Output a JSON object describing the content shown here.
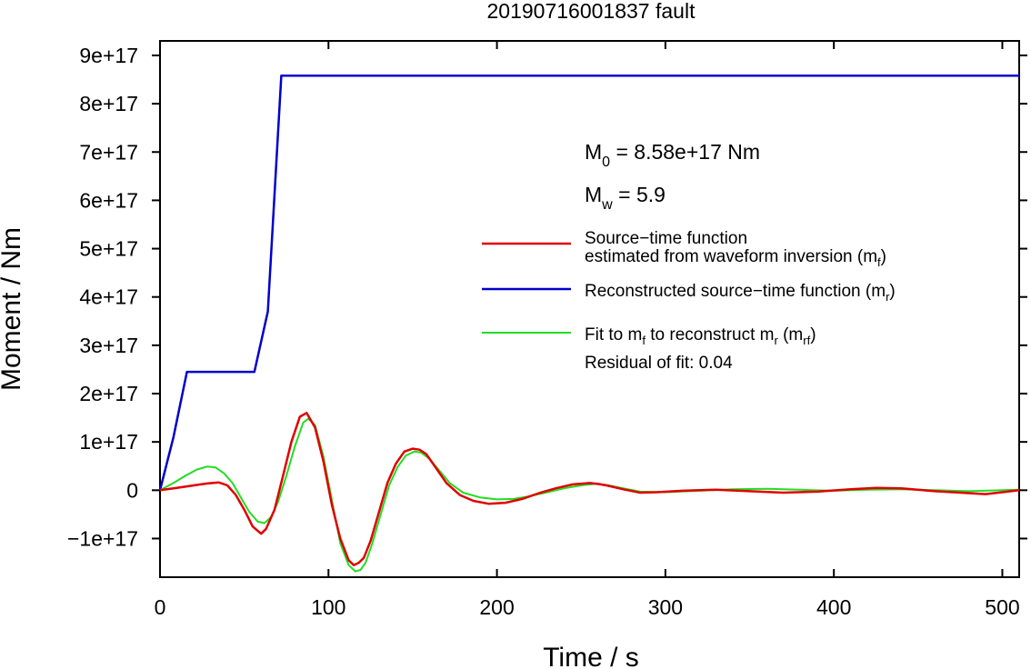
{
  "chart_data": {
    "type": "line",
    "title": "20190716001837 fault",
    "xlabel": "Time / s",
    "ylabel": "Moment / Nm",
    "xlim": [
      0,
      510
    ],
    "ylim": [
      -1.8e+17,
      9.3e+17
    ],
    "x_ticks": [
      0,
      100,
      200,
      300,
      400,
      500
    ],
    "x_tick_labels": [
      "0",
      "100",
      "200",
      "300",
      "400",
      "500"
    ],
    "y_ticks": [
      -1e+17,
      0,
      1e+17,
      2e+17,
      3e+17,
      4e+17,
      5e+17,
      6e+17,
      7e+17,
      8e+17,
      9e+17
    ],
    "y_tick_labels": [
      "−1e+17",
      "0",
      "1e+17",
      "2e+17",
      "3e+17",
      "4e+17",
      "5e+17",
      "6e+17",
      "7e+17",
      "8e+17",
      "9e+17"
    ],
    "grid": false,
    "legend_position": "right",
    "annotations": {
      "m0": {
        "main": "M",
        "sub": "0",
        "rest": " = 8.58e+17 Nm"
      },
      "mw": {
        "main": "M",
        "sub": "w",
        "rest": " = 5.9"
      },
      "residual": "Residual of fit: 0.04"
    },
    "colors": {
      "red": "#e00000",
      "blue": "#0000cc",
      "green": "#22dd22"
    },
    "legend": [
      {
        "key": "red",
        "line1": "Source−time function",
        "line2_main": "estimated from waveform inversion (m",
        "line2_sub": "f",
        "line2_end": ")"
      },
      {
        "key": "blue",
        "line1_main": "Reconstructed source−time function (m",
        "line1_sub": "r",
        "line1_end": ")"
      },
      {
        "key": "green",
        "line1_a": "Fit to m",
        "line1_sub1": "f",
        "line1_b": " to reconstruct m",
        "line1_sub2": "r",
        "line1_c": " (m",
        "line1_sub3": "rf",
        "line1_d": ")"
      }
    ],
    "series": [
      {
        "key": "blue",
        "x": [
          0,
          8,
          16,
          56,
          64,
          72,
          510
        ],
        "y": [
          0,
          1.1e+17,
          2.45e+17,
          2.45e+17,
          3.7e+17,
          8.58e+17,
          8.58e+17
        ]
      },
      {
        "key": "red",
        "x": [
          0,
          10,
          20,
          28,
          35,
          40,
          45,
          50,
          55,
          60,
          63,
          68,
          73,
          78,
          83,
          87,
          92,
          97,
          102,
          107,
          112,
          115,
          118,
          121,
          125,
          130,
          135,
          140,
          145,
          150,
          154,
          158,
          163,
          170,
          178,
          186,
          195,
          205,
          215,
          225,
          235,
          245,
          255,
          260,
          265,
          275,
          285,
          295,
          310,
          330,
          350,
          370,
          390,
          410,
          425,
          440,
          460,
          480,
          490,
          500,
          510
        ],
        "y": [
          0,
          5000000000000000.0,
          1e+16,
          1.4e+16,
          1.6e+16,
          1e+16,
          -1e+16,
          -4e+16,
          -7.5e+16,
          -9e+16,
          -8e+16,
          -4e+16,
          3e+16,
          1e+17,
          1.52e+17,
          1.6e+17,
          1.3e+17,
          6e+16,
          -3e+16,
          -1e+17,
          -1.45e+17,
          -1.55e+17,
          -1.5e+17,
          -1.4e+17,
          -1.05e+17,
          -4.5e+16,
          1.5e+16,
          5.5e+16,
          8e+16,
          8.6e+16,
          8.4e+16,
          7.5e+16,
          5e+16,
          1.5e+16,
          -1e+16,
          -2.2e+16,
          -2.8e+16,
          -2.6e+16,
          -1.8e+16,
          -6000000000000000.0,
          4000000000000000.0,
          1.2e+16,
          1.5e+16,
          1.3e+16,
          1e+16,
          2000000000000000.0,
          -5000000000000000.0,
          -4000000000000000.0,
          -1000000000000000.0,
          1000000000000000.0,
          -2000000000000000.0,
          -5000000000000000.0,
          -3000000000000000.0,
          2000000000000000.0,
          5000000000000000.0,
          4000000000000000.0,
          -2000000000000000.0,
          -6000000000000000.0,
          -8000000000000000.0,
          -4000000000000000.0,
          0
        ]
      },
      {
        "key": "green",
        "x": [
          0,
          8,
          15,
          22,
          28,
          33,
          38,
          43,
          48,
          53,
          58,
          62,
          66,
          70,
          75,
          80,
          85,
          88,
          92,
          97,
          102,
          107,
          112,
          116,
          119,
          122,
          126,
          131,
          136,
          141,
          146,
          151,
          155,
          160,
          166,
          172,
          180,
          190,
          200,
          210,
          220,
          230,
          240,
          250,
          258,
          265,
          275,
          285,
          300,
          320,
          340,
          360,
          380,
          400,
          420,
          440,
          460,
          480,
          500,
          510
        ],
        "y": [
          0,
          1.5e+16,
          3e+16,
          4.3e+16,
          4.9e+16,
          4.7e+16,
          3.5e+16,
          1.5e+16,
          -1.5e+16,
          -4.5e+16,
          -6.5e+16,
          -6.8e+16,
          -5.5e+16,
          -2.5e+16,
          3e+16,
          9e+16,
          1.4e+17,
          1.48e+17,
          1.35e+17,
          7e+16,
          -2e+16,
          -1.1e+17,
          -1.55e+17,
          -1.68e+17,
          -1.65e+17,
          -1.5e+17,
          -1.1e+17,
          -5e+16,
          1e+16,
          4.8e+16,
          7.2e+16,
          8e+16,
          7.8e+16,
          6.5e+16,
          4e+16,
          1.5e+16,
          -5000000000000000.0,
          -1.5e+16,
          -1.9e+16,
          -1.8e+16,
          -1.2e+16,
          -4000000000000000.0,
          4000000000000000.0,
          1e+16,
          1.3e+16,
          1.1e+16,
          4000000000000000.0,
          -3000000000000000.0,
          -4000000000000000.0,
          -1000000000000000.0,
          2000000000000000.0,
          3000000000000000.0,
          1000000000000000.0,
          -1000000000000000.0,
          1000000000000000.0,
          2000000000000000.0,
          0,
          -2000000000000000.0,
          0,
          1000000000000000.0
        ]
      }
    ]
  }
}
